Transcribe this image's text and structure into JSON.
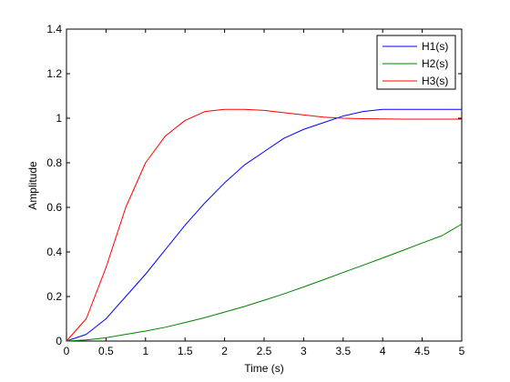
{
  "chart_data": {
    "type": "line",
    "title": "",
    "xlabel": "Time (s)",
    "ylabel": "Amplitude",
    "xlim": [
      0,
      5
    ],
    "ylim": [
      0,
      1.4
    ],
    "xticks": [
      0,
      0.5,
      1,
      1.5,
      2,
      2.5,
      3,
      3.5,
      4,
      4.5,
      5
    ],
    "xtick_labels": [
      "0",
      "0.5",
      "1",
      "1.5",
      "2",
      "2.5",
      "3",
      "3.5",
      "4",
      "4.5",
      "5"
    ],
    "yticks": [
      0,
      0.2,
      0.4,
      0.6,
      0.8,
      1,
      1.2,
      1.4
    ],
    "ytick_labels": [
      "0",
      "0.2",
      "0.4",
      "0.6",
      "0.8",
      "1",
      "1.2",
      "1.4"
    ],
    "grid": false,
    "legend_position": "top-right",
    "series": [
      {
        "name": "H1(s)",
        "color": "#0000ff",
        "x": [
          0,
          0.25,
          0.5,
          0.75,
          1,
          1.25,
          1.5,
          1.75,
          2,
          2.25,
          2.5,
          2.75,
          3,
          3.25,
          3.5,
          3.75,
          4,
          4.25,
          4.5,
          4.75,
          5
        ],
        "y": [
          0,
          0.03,
          0.1,
          0.2,
          0.3,
          0.41,
          0.52,
          0.62,
          0.71,
          0.79,
          0.85,
          0.91,
          0.95,
          0.98,
          1.01,
          1.03,
          1.04,
          1.04,
          1.04,
          1.04,
          1.04
        ]
      },
      {
        "name": "H2(s)",
        "color": "#008000",
        "x": [
          0,
          0.25,
          0.5,
          0.75,
          1,
          1.25,
          1.5,
          1.75,
          2,
          2.25,
          2.5,
          2.75,
          3,
          3.25,
          3.5,
          3.75,
          4,
          4.25,
          4.5,
          4.75,
          5
        ],
        "y": [
          0,
          0.005,
          0.015,
          0.03,
          0.045,
          0.062,
          0.083,
          0.105,
          0.13,
          0.155,
          0.183,
          0.212,
          0.243,
          0.275,
          0.308,
          0.34,
          0.373,
          0.406,
          0.44,
          0.473,
          0.525
        ]
      },
      {
        "name": "H3(s)",
        "color": "#ff0000",
        "x": [
          0,
          0.25,
          0.5,
          0.75,
          1,
          1.25,
          1.5,
          1.75,
          2,
          2.25,
          2.5,
          2.75,
          3,
          3.25,
          3.5,
          3.75,
          4,
          4.25,
          4.5,
          4.75,
          5
        ],
        "y": [
          0,
          0.1,
          0.33,
          0.6,
          0.8,
          0.92,
          0.99,
          1.03,
          1.04,
          1.04,
          1.035,
          1.025,
          1.015,
          1.005,
          1.0,
          0.998,
          0.997,
          0.996,
          0.996,
          0.996,
          0.996
        ]
      }
    ]
  }
}
